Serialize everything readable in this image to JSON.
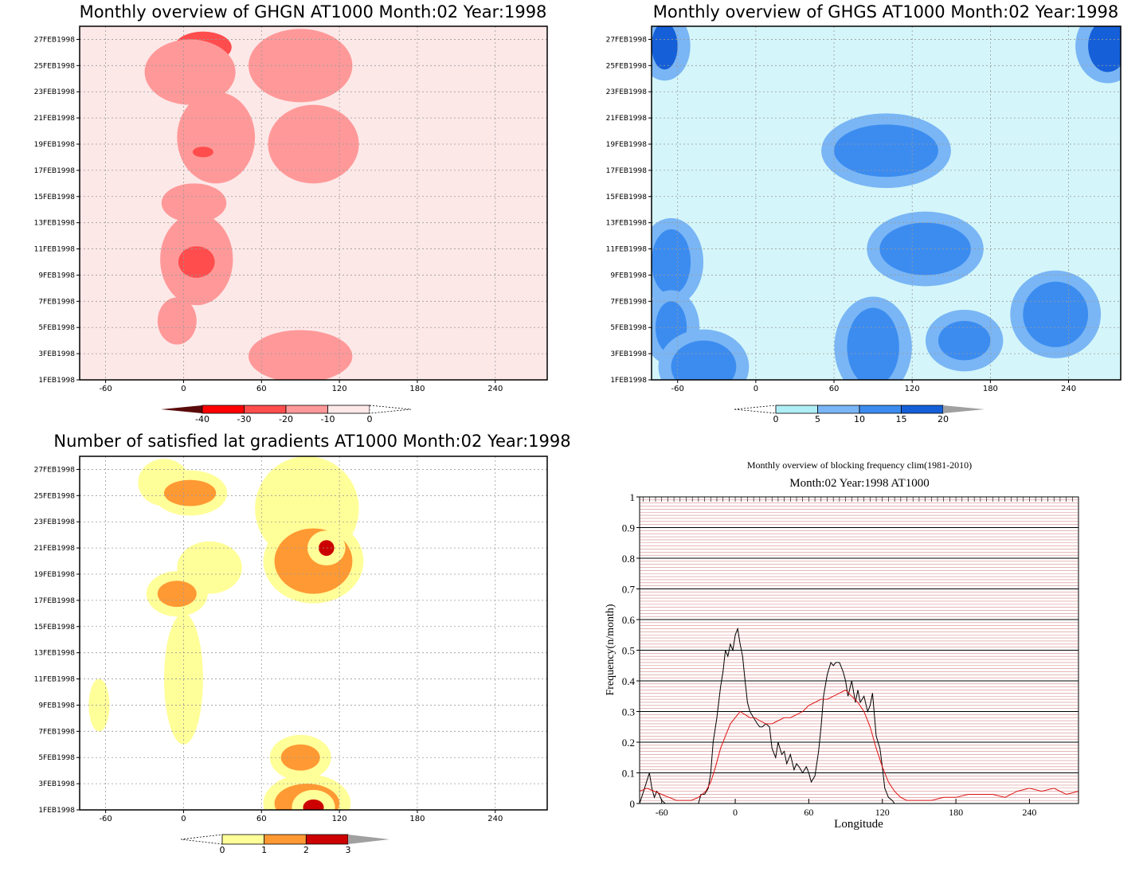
{
  "panels": {
    "ghgn": {
      "title": "Monthly overview of GHGN AT1000 Month:02 Year:1998",
      "colorbar": {
        "labels": [
          "-40",
          "-30",
          "-20",
          "-10",
          "0"
        ],
        "colors": [
          "#5a0a0a",
          "#ff0000",
          "#ff4d4d",
          "#ff9999",
          "#fde8e8",
          "#ffffff"
        ]
      }
    },
    "ghgs": {
      "title": "Monthly overview of GHGS AT1000 Month:02 Year:1998",
      "colorbar": {
        "labels": [
          "0",
          "5",
          "10",
          "15",
          "20"
        ],
        "colors": [
          "#ffffff",
          "#b0eef5",
          "#7ab6f5",
          "#3c8cf0",
          "#1560d8",
          "#a0a0a0"
        ]
      }
    },
    "nsat": {
      "title": "Number of satisfied lat gradients AT1000 Month:02 Year:1998",
      "colorbar": {
        "labels": [
          "0",
          "1",
          "2",
          "3"
        ],
        "colors": [
          "#ffffff",
          "#ffff99",
          "#ff9933",
          "#cc0000",
          "#a0a0a0"
        ]
      }
    },
    "freq": {
      "title": "Monthly overview of blocking frequency clim(1981-2010)",
      "subtitle": "Month:02 Year:1998  AT1000",
      "ylabel": "Frequency(n/month)",
      "xlabel": "Longitude"
    }
  },
  "axes": {
    "x_ticks": [
      "-60",
      "0",
      "60",
      "120",
      "180",
      "240"
    ],
    "y_ticks": [
      "1FEB1998",
      "3FEB1998",
      "5FEB1998",
      "7FEB1998",
      "9FEB1998",
      "11FEB1998",
      "13FEB1998",
      "15FEB1998",
      "17FEB1998",
      "19FEB1998",
      "21FEB1998",
      "23FEB1998",
      "25FEB1998",
      "27FEB1998"
    ],
    "freq_y_ticks": [
      "0",
      "0.1",
      "0.2",
      "0.3",
      "0.4",
      "0.5",
      "0.6",
      "0.7",
      "0.8",
      "0.9",
      "1"
    ]
  },
  "chart_data": [
    {
      "type": "heatmap",
      "title": "Monthly overview of GHGN AT1000 Month:02 Year:1998",
      "x_range": [
        -80,
        280
      ],
      "y_range": [
        "1FEB1998",
        "28FEB1998"
      ],
      "levels": [
        -40,
        -30,
        -20,
        -10,
        0
      ],
      "blobs": [
        {
          "lon": 15,
          "day": 26.4,
          "rlon": 22,
          "rday": 1.2,
          "value": -30
        },
        {
          "lon": 5,
          "day": 24.5,
          "rlon": 35,
          "rday": 2.5,
          "value": -15
        },
        {
          "lon": 25,
          "day": 19.5,
          "rlon": 30,
          "rday": 3.5,
          "value": -15
        },
        {
          "lon": 15,
          "day": 18.4,
          "rlon": 8,
          "rday": 0.4,
          "value": -25
        },
        {
          "lon": 8,
          "day": 14.5,
          "rlon": 25,
          "rday": 1.5,
          "value": -12
        },
        {
          "lon": 10,
          "day": 10.2,
          "rlon": 28,
          "rday": 3.5,
          "value": -18
        },
        {
          "lon": 10,
          "day": 10.0,
          "rlon": 14,
          "rday": 1.2,
          "value": -30
        },
        {
          "lon": -5,
          "day": 5.5,
          "rlon": 15,
          "rday": 1.8,
          "value": -12
        },
        {
          "lon": 90,
          "day": 25.0,
          "rlon": 40,
          "rday": 2.8,
          "value": -15
        },
        {
          "lon": 100,
          "day": 19.0,
          "rlon": 35,
          "rday": 3.0,
          "value": -15
        },
        {
          "lon": 90,
          "day": 2.8,
          "rlon": 40,
          "rday": 2.0,
          "value": -15
        }
      ]
    },
    {
      "type": "heatmap",
      "title": "Monthly overview of GHGS AT1000 Month:02 Year:1998",
      "x_range": [
        -80,
        280
      ],
      "y_range": [
        "1FEB1998",
        "28FEB1998"
      ],
      "levels": [
        0,
        5,
        10,
        15,
        20
      ],
      "blobs": [
        {
          "lon": -70,
          "day": 26.5,
          "rlon": 10,
          "rday": 1.8,
          "value": 16
        },
        {
          "lon": -65,
          "day": 10.0,
          "rlon": 15,
          "rday": 2.5,
          "value": 12
        },
        {
          "lon": -65,
          "day": 5.0,
          "rlon": 12,
          "rday": 2.0,
          "value": 12
        },
        {
          "lon": -40,
          "day": 2.0,
          "rlon": 25,
          "rday": 2.0,
          "value": 12
        },
        {
          "lon": 100,
          "day": 18.5,
          "rlon": 40,
          "rday": 2.0,
          "value": 14
        },
        {
          "lon": 130,
          "day": 11.0,
          "rlon": 35,
          "rday": 2.0,
          "value": 12
        },
        {
          "lon": 90,
          "day": 3.5,
          "rlon": 20,
          "rday": 3.0,
          "value": 12
        },
        {
          "lon": 230,
          "day": 6.0,
          "rlon": 25,
          "rday": 2.5,
          "value": 14
        },
        {
          "lon": 270,
          "day": 26.5,
          "rlon": 15,
          "rday": 2.0,
          "value": 16
        },
        {
          "lon": 160,
          "day": 4.0,
          "rlon": 20,
          "rday": 1.5,
          "value": 12
        }
      ]
    },
    {
      "type": "heatmap",
      "title": "Number of satisfied lat gradients AT1000 Month:02 Year:1998",
      "x_range": [
        -80,
        280
      ],
      "y_range": [
        "1FEB1998",
        "28FEB1998"
      ],
      "levels": [
        0,
        1,
        2,
        3
      ],
      "blobs": [
        {
          "lon": -15,
          "day": 26.0,
          "rlon": 20,
          "rday": 1.8,
          "value": 1
        },
        {
          "lon": 5,
          "day": 25.2,
          "rlon": 20,
          "rday": 1.0,
          "value": 2
        },
        {
          "lon": 20,
          "day": 19.5,
          "rlon": 25,
          "rday": 2.0,
          "value": 1
        },
        {
          "lon": -5,
          "day": 17.5,
          "rlon": 15,
          "rday": 1.0,
          "value": 2
        },
        {
          "lon": 0,
          "day": 11.0,
          "rlon": 15,
          "rday": 5.0,
          "value": 1
        },
        {
          "lon": 95,
          "day": 24.0,
          "rlon": 40,
          "rday": 4.0,
          "value": 1
        },
        {
          "lon": 100,
          "day": 20.0,
          "rlon": 30,
          "rday": 2.5,
          "value": 2
        },
        {
          "lon": 110,
          "day": 21.0,
          "rlon": 6,
          "rday": 0.6,
          "value": 3
        },
        {
          "lon": 95,
          "day": 1.5,
          "rlon": 25,
          "rday": 1.5,
          "value": 2
        },
        {
          "lon": 100,
          "day": 1.2,
          "rlon": 8,
          "rday": 0.6,
          "value": 3
        },
        {
          "lon": 90,
          "day": 5.0,
          "rlon": 15,
          "rday": 1.0,
          "value": 2
        },
        {
          "lon": -65,
          "day": 9.0,
          "rlon": 8,
          "rday": 2.0,
          "value": 1
        }
      ]
    },
    {
      "type": "line",
      "title": "Monthly overview of blocking frequency clim(1981-2010)",
      "subtitle": "Month:02 Year:1998  AT1000",
      "xlabel": "Longitude",
      "ylabel": "Frequency(n/month)",
      "xlim": [
        -78,
        280
      ],
      "ylim": [
        0,
        1
      ],
      "series": [
        {
          "color": "#000000",
          "x": [
            -78,
            -74,
            -70,
            -68,
            -66,
            -64,
            -62,
            -60,
            -57,
            -55,
            -50,
            -40,
            -35,
            -30,
            -28,
            -25,
            -22,
            -20,
            -18,
            -15,
            -12,
            -10,
            -8,
            -6,
            -4,
            -2,
            0,
            2,
            4,
            6,
            8,
            10,
            12,
            15,
            18,
            20,
            22,
            25,
            28,
            30,
            33,
            35,
            38,
            40,
            42,
            45,
            48,
            50,
            52,
            55,
            58,
            60,
            62,
            65,
            68,
            70,
            72,
            75,
            78,
            80,
            82,
            85,
            88,
            90,
            92,
            95,
            98,
            100,
            102,
            105,
            108,
            110,
            112,
            115,
            118,
            120,
            122,
            125,
            128,
            130,
            135,
            140,
            145,
            150,
            155,
            160
          ],
          "y": [
            0,
            0.05,
            0.1,
            0.05,
            0.02,
            0.04,
            0.03,
            0.01,
            0,
            0,
            0,
            0,
            0,
            0,
            0.03,
            0.03,
            0.05,
            0.1,
            0.2,
            0.28,
            0.38,
            0.43,
            0.5,
            0.48,
            0.52,
            0.5,
            0.55,
            0.57,
            0.52,
            0.48,
            0.4,
            0.33,
            0.3,
            0.28,
            0.26,
            0.25,
            0.25,
            0.26,
            0.25,
            0.18,
            0.15,
            0.2,
            0.16,
            0.17,
            0.13,
            0.16,
            0.11,
            0.13,
            0.12,
            0.1,
            0.12,
            0.1,
            0.07,
            0.09,
            0.17,
            0.25,
            0.35,
            0.42,
            0.46,
            0.45,
            0.46,
            0.46,
            0.43,
            0.4,
            0.35,
            0.4,
            0.33,
            0.37,
            0.33,
            0.35,
            0.3,
            0.32,
            0.36,
            0.22,
            0.18,
            0.12,
            0.05,
            0.02,
            0.01,
            0,
            0,
            0,
            0,
            0,
            0,
            0
          ]
        },
        {
          "color": "#dd1111",
          "x": [
            -78,
            -72,
            -66,
            -60,
            -54,
            -48,
            -42,
            -36,
            -30,
            -24,
            -20,
            -16,
            -12,
            -8,
            -4,
            0,
            4,
            8,
            12,
            16,
            20,
            25,
            30,
            35,
            40,
            45,
            50,
            55,
            60,
            65,
            70,
            75,
            80,
            85,
            90,
            95,
            100,
            105,
            110,
            115,
            120,
            125,
            130,
            135,
            140,
            150,
            160,
            170,
            180,
            190,
            200,
            210,
            220,
            230,
            240,
            250,
            260,
            270,
            280
          ],
          "y": [
            0.04,
            0.05,
            0.04,
            0.03,
            0.02,
            0.01,
            0.01,
            0.01,
            0.02,
            0.04,
            0.07,
            0.12,
            0.18,
            0.22,
            0.26,
            0.28,
            0.3,
            0.29,
            0.28,
            0.28,
            0.27,
            0.26,
            0.26,
            0.27,
            0.28,
            0.28,
            0.29,
            0.3,
            0.32,
            0.33,
            0.34,
            0.34,
            0.35,
            0.36,
            0.37,
            0.35,
            0.33,
            0.3,
            0.25,
            0.18,
            0.12,
            0.07,
            0.04,
            0.02,
            0.01,
            0.01,
            0.01,
            0.02,
            0.02,
            0.03,
            0.03,
            0.03,
            0.02,
            0.04,
            0.05,
            0.04,
            0.05,
            0.03,
            0.04
          ]
        }
      ]
    }
  ]
}
